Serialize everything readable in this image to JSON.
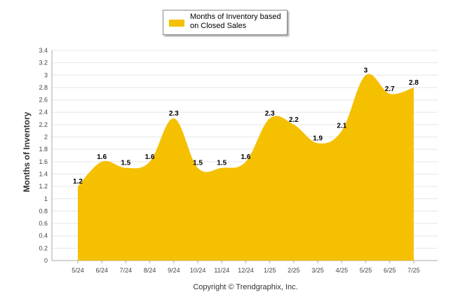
{
  "chart_data": {
    "type": "area",
    "categories": [
      "5/24",
      "6/24",
      "7/24",
      "8/24",
      "9/24",
      "10/24",
      "11/24",
      "12/24",
      "1/25",
      "2/25",
      "3/25",
      "4/25",
      "5/25",
      "6/25",
      "7/25"
    ],
    "series": [
      {
        "name": "Months of Inventory based on Closed Sales",
        "values": [
          1.2,
          1.6,
          1.5,
          1.6,
          2.3,
          1.5,
          1.5,
          1.6,
          2.3,
          2.2,
          1.9,
          2.1,
          3,
          2.7,
          2.8
        ],
        "labels": [
          "1.2",
          "1.6",
          "1.5",
          "1.6",
          "2.3",
          "1.5",
          "1.5",
          "1.6",
          "2.3",
          "2.2",
          "1.9",
          "2.1",
          "3",
          "2.7",
          "2.8"
        ],
        "color": "#f5c000"
      }
    ],
    "ylabel": "Months of Inventory",
    "ylim": [
      0,
      3.4
    ],
    "yticks": [
      "0",
      "0.2",
      "0.4",
      "0.6",
      "0.8",
      "1",
      "1.2",
      "1.4",
      "1.6",
      "1.8",
      "2",
      "2.2",
      "2.4",
      "2.6",
      "2.8",
      "3",
      "3.2",
      "3.4"
    ],
    "grid": true,
    "legend_position": "top-center"
  },
  "legend": {
    "label": "Months of Inventory based on Closed Sales"
  },
  "footer": "Copyright © Trendgraphix, Inc.",
  "colors": {
    "area": "#f5c000",
    "grid": "#e6e6e6",
    "axis": "#aaaaaa"
  }
}
